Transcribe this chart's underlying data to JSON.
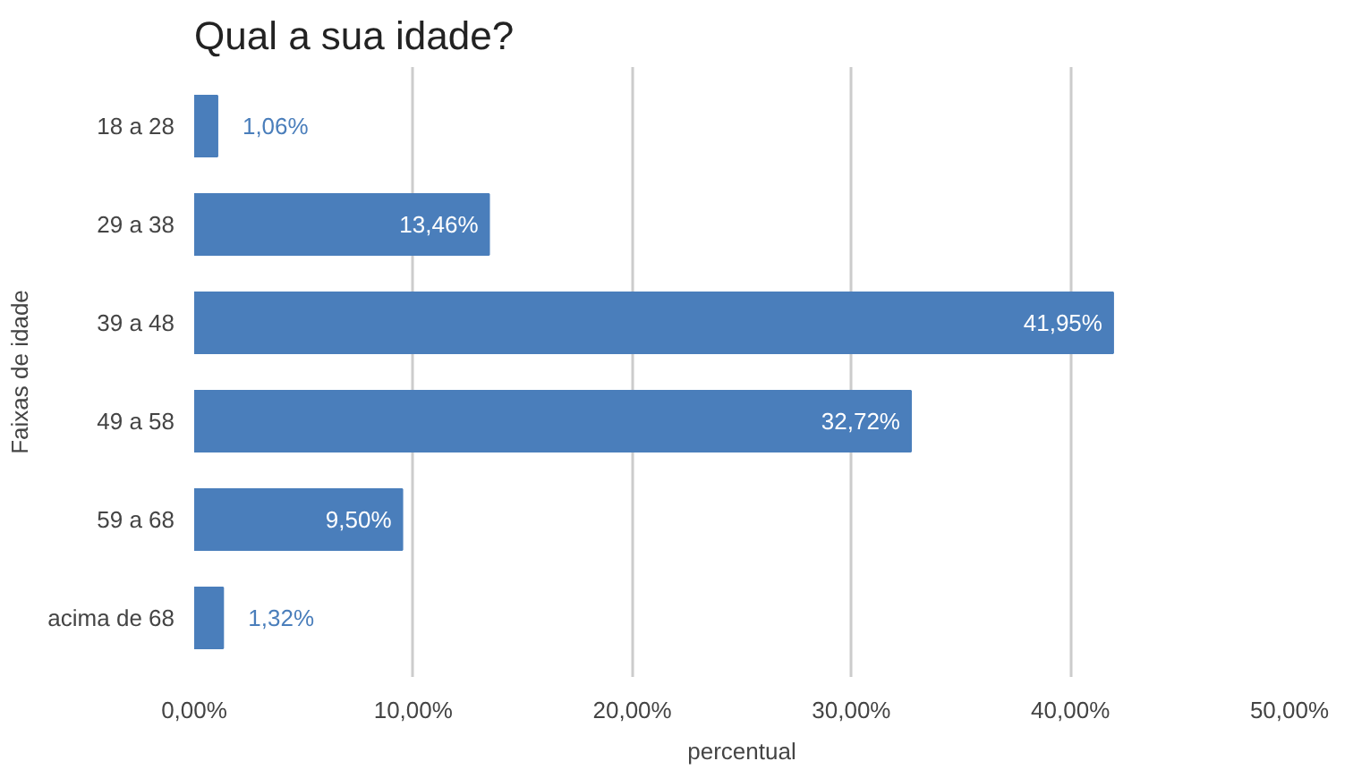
{
  "chart_data": {
    "type": "bar",
    "orientation": "horizontal",
    "title": "Qual a sua idade?",
    "xlabel": "percentual",
    "ylabel": "Faixas de idade",
    "categories": [
      "18 a 28",
      "29 a 38",
      "39 a 48",
      "49 a 58",
      "59 a 68",
      "acima de 68"
    ],
    "values": [
      1.06,
      13.46,
      41.95,
      32.72,
      9.5,
      1.32
    ],
    "value_labels": [
      "1,06%",
      "13,46%",
      "41,95%",
      "32,72%",
      "9,50%",
      "1,32%"
    ],
    "color": "#4a7ebb",
    "xlim": [
      0,
      50
    ],
    "xticks": [
      {
        "value": 0,
        "label": "0,00%"
      },
      {
        "value": 10,
        "label": "10,00%"
      },
      {
        "value": 20,
        "label": "20,00%"
      },
      {
        "value": 30,
        "label": "30,00%"
      },
      {
        "value": 40,
        "label": "40,00%"
      },
      {
        "value": 50,
        "label": "50,00%"
      }
    ],
    "grid": "x"
  }
}
